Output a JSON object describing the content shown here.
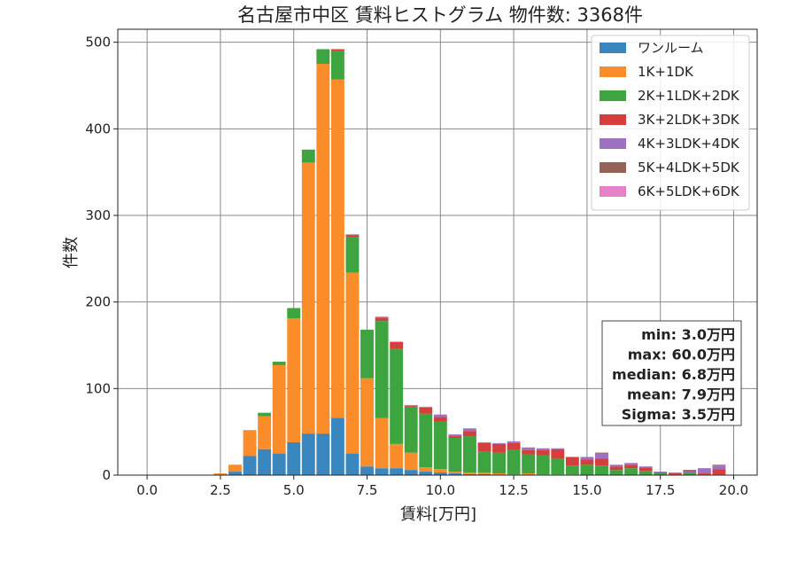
{
  "chart_data": {
    "type": "bar",
    "stacked": true,
    "title": "名古屋市中区 賃料ヒストグラム 物件数: 3368件",
    "xlabel": "賃料[万円]",
    "ylabel": "件数",
    "xlim": [
      -1.0,
      20.8
    ],
    "ylim": [
      0,
      515
    ],
    "grid": true,
    "legend_position": "top-right",
    "x_ticks": [
      0.0,
      2.5,
      5.0,
      7.5,
      10.0,
      12.5,
      15.0,
      17.5,
      20.0
    ],
    "x_tick_labels": [
      "0.0",
      "2.5",
      "5.0",
      "7.5",
      "10.0",
      "12.5",
      "15.0",
      "17.5",
      "20.0"
    ],
    "y_ticks": [
      0,
      100,
      200,
      300,
      400,
      500
    ],
    "y_tick_labels": [
      "0",
      "100",
      "200",
      "300",
      "400",
      "500"
    ],
    "bin_width": 0.5,
    "bin_starts": [
      2.25,
      2.75,
      3.25,
      3.75,
      4.25,
      4.75,
      5.25,
      5.75,
      6.25,
      6.75,
      7.25,
      7.75,
      8.25,
      8.75,
      9.25,
      9.75,
      10.25,
      10.75,
      11.25,
      11.75,
      12.25,
      12.75,
      13.25,
      13.75,
      14.25,
      14.75,
      15.25,
      15.75,
      16.25,
      16.75,
      17.25,
      17.75,
      18.25,
      18.75,
      19.25
    ],
    "series": [
      {
        "name": "ワンルーム",
        "color": "#3a87c0",
        "values": [
          0,
          4,
          22,
          30,
          25,
          38,
          48,
          48,
          66,
          25,
          10,
          8,
          8,
          6,
          4,
          3,
          2,
          1,
          1,
          0,
          0,
          0,
          0,
          0,
          0,
          0,
          0,
          0,
          0,
          0,
          0,
          0,
          0,
          0,
          0
        ]
      },
      {
        "name": "1K+1DK",
        "color": "#fb8c2a",
        "values": [
          2,
          8,
          30,
          38,
          102,
          143,
          313,
          427,
          391,
          209,
          102,
          58,
          28,
          20,
          5,
          4,
          2,
          2,
          2,
          2,
          1,
          2,
          1,
          1,
          1,
          0,
          0,
          0,
          0,
          0,
          0,
          0,
          0,
          0,
          0
        ]
      },
      {
        "name": "2K+1LDK+2DK",
        "color": "#3ea43f",
        "values": [
          0,
          0,
          0,
          4,
          4,
          12,
          15,
          17,
          33,
          41,
          56,
          112,
          110,
          53,
          62,
          55,
          39,
          42,
          24,
          24,
          28,
          22,
          22,
          18,
          10,
          12,
          11,
          6,
          8,
          5,
          2,
          1,
          2,
          1,
          1
        ]
      },
      {
        "name": "3K+2LDK+3DK",
        "color": "#d63d3d",
        "values": [
          0,
          0,
          0,
          0,
          0,
          0,
          0,
          0,
          2,
          2,
          0,
          4,
          8,
          1,
          7,
          5,
          2,
          6,
          10,
          10,
          8,
          5,
          6,
          11,
          10,
          6,
          8,
          4,
          4,
          4,
          1,
          1,
          1,
          1,
          6
        ]
      },
      {
        "name": "4K+3LDK+4DK",
        "color": "#9e70c1",
        "values": [
          0,
          0,
          0,
          0,
          0,
          0,
          0,
          0,
          0,
          0,
          0,
          1,
          0,
          1,
          1,
          3,
          2,
          3,
          1,
          1,
          2,
          3,
          2,
          1,
          0,
          3,
          6,
          2,
          2,
          1,
          1,
          1,
          1,
          6,
          4
        ]
      },
      {
        "name": "5K+4LDK+5DK",
        "color": "#946257",
        "values": [
          0,
          0,
          0,
          0,
          0,
          0,
          0,
          0,
          0,
          1,
          0,
          0,
          0,
          0,
          0,
          0,
          0,
          0,
          0,
          0,
          0,
          0,
          0,
          0,
          0,
          0,
          1,
          0,
          0,
          0,
          0,
          0,
          2,
          0,
          1
        ]
      },
      {
        "name": "6K+5LDK+6DK",
        "color": "#e683c8",
        "values": [
          0,
          0,
          0,
          0,
          0,
          0,
          0,
          0,
          0,
          0,
          0,
          0,
          0,
          0,
          0,
          0,
          0,
          0,
          0,
          0,
          0,
          0,
          0,
          0,
          0,
          0,
          0,
          0,
          0,
          0,
          0,
          0,
          0,
          0,
          0
        ]
      }
    ],
    "stats_box": {
      "lines": [
        "min: 3.0万円",
        "max: 60.0万円",
        "median: 6.8万円",
        "mean: 7.9万円",
        "Sigma: 3.5万円"
      ],
      "position": "bottom-right"
    }
  }
}
